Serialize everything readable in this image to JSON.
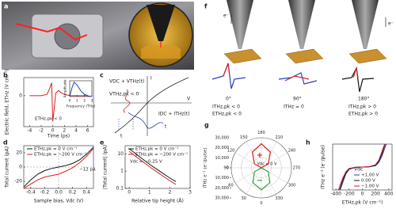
{
  "panels": {
    "a": {
      "label": "a"
    },
    "c": {
      "label": "c",
      "bias": "VDC + VTHz(t)",
      "peak": "VTHz,pk < 0",
      "i_axis": "I",
      "v_axis": "V",
      "current": "IDC + ITHz(t)",
      "t1": "t",
      "t2": "t"
    },
    "f": {
      "label": "f",
      "electron_1": "e⁻",
      "electron_2": "e⁻",
      "angle_1": "0°",
      "angle_2": "90°",
      "angle_3": "180°",
      "note_1a": "ITHz,pk < 0",
      "note_1b": "ETHz,pk < 0",
      "note_2": "ITHz = 0",
      "note_3a": "ITHz,pk > 0",
      "note_3b": "ETHz,pk > 0"
    }
  },
  "chart_data": [
    {
      "type": "line",
      "panel_label": "b",
      "xlabel": "Time (ps)",
      "ylabel": "Electric field, ETHz (V cm⁻¹)",
      "x": [
        -4,
        -3,
        -2,
        -1,
        -0.5,
        -0.2,
        0,
        0.2,
        0.5,
        1,
        1.5,
        2,
        3,
        4,
        6
      ],
      "xlim": [
        -5,
        7
      ],
      "xticks": [
        -4,
        -2,
        0,
        2,
        4,
        6
      ],
      "ylim": [
        -1.2,
        0.7
      ],
      "yticks": [
        0
      ],
      "series": [
        {
          "color": "#d62020",
          "values": [
            0,
            0,
            0,
            0.05,
            0.3,
            0.5,
            -1.0,
            -0.6,
            0.1,
            0.2,
            0.1,
            0.05,
            0,
            0,
            0
          ]
        }
      ],
      "annotations": [
        "ETHz,pk < 0"
      ]
    },
    {
      "type": "line",
      "xlabel": "Frequency (THz)",
      "ylabel": "Amplitude",
      "x": [
        0,
        0.3,
        0.6,
        1,
        1.5,
        2,
        2.5,
        3
      ],
      "xlim": [
        0,
        3
      ],
      "xticks": [
        0,
        1,
        2,
        3
      ],
      "ylim": [
        0,
        1.1
      ],
      "yticks": [],
      "series": [
        {
          "color": "#2a3fbf",
          "values": [
            0,
            0.6,
            1,
            0.8,
            0.4,
            0.15,
            0.05,
            0
          ]
        }
      ]
    },
    {
      "type": "line",
      "panel_label": "d",
      "xlabel": "Sample bias, Vdc (V)",
      "ylabel": "Total current (pA)",
      "x": [
        -0.5,
        -0.4,
        -0.3,
        -0.2,
        -0.1,
        0,
        0.1,
        0.2,
        0.3,
        0.4,
        0.5
      ],
      "xlim": [
        -0.5,
        0.5
      ],
      "xticks": [
        -0.4,
        -0.2,
        {
          "value": 0,
          "label": "0.0"
        },
        0.2,
        0.4
      ],
      "ylim": [
        -30,
        30
      ],
      "yticks": [
        -20,
        0,
        20
      ],
      "zero_lines": true,
      "series": [
        {
          "name": "ETHz,pk = 0 V cm⁻¹",
          "color": "#111111",
          "values": [
            -28,
            -18,
            -10,
            -5,
            -2,
            0,
            2,
            5,
            10,
            18,
            28
          ]
        },
        {
          "name": "ETHz,pk = −200 V cm⁻¹",
          "color": "#d62020",
          "values": [
            -30,
            -24,
            -18,
            -14,
            -12,
            -10,
            -6,
            -1,
            6,
            15,
            26
          ]
        }
      ],
      "annotations": [
        "−12 pA"
      ]
    },
    {
      "type": "line",
      "panel_label": "e",
      "xlabel": "Relative tip height (Å)",
      "ylabel": "|Total current| (pA)",
      "x": [
        0,
        0.5,
        1,
        1.5,
        2,
        2.3
      ],
      "xlim": [
        -0.2,
        3
      ],
      "xticks": [
        0,
        1,
        2,
        3
      ],
      "ylim": [
        0.1,
        30
      ],
      "ylog": true,
      "yticks": [
        0.1,
        1,
        10
      ],
      "series": [
        {
          "name": "ETHz,pk = 0 V cm⁻¹",
          "color": "#111111",
          "values": [
            20,
            7,
            2.5,
            1,
            0.4,
            0.25
          ]
        },
        {
          "name": "ETHz,pk = −200 V cm⁻¹",
          "color": "#d62020",
          "values": [
            14,
            5,
            1.8,
            0.7,
            0.28,
            0.17
          ]
        }
      ],
      "annotations": [
        "Vdc = −0.25 V"
      ]
    },
    {
      "type": "polar",
      "panel_label": "g",
      "ylabel": "ITHz e⁻¹ (e⁻/pulse)",
      "rlim": [
        0,
        30000
      ],
      "yticks": [
        {
          "value": 30000,
          "label": "30,000"
        },
        {
          "value": 20000,
          "label": "20,000"
        },
        {
          "value": 10000,
          "label": "10,000"
        },
        0,
        {
          "value": -10000,
          "label": "10,000"
        },
        {
          "value": -20000,
          "label": "20,000"
        },
        {
          "value": -30000,
          "label": "30,000"
        }
      ],
      "angle_ticks": [
        0,
        30,
        60,
        90,
        120,
        150,
        180,
        210,
        240,
        270,
        300,
        330
      ],
      "series": [
        {
          "color": "#d62020",
          "angles": [
            90,
            120,
            150,
            180,
            210,
            240,
            270
          ],
          "values": [
            0,
            8000,
            18000,
            24000,
            18000,
            8000,
            0
          ]
        },
        {
          "color": "#3a9a3a",
          "angles": [
            -90,
            -60,
            -30,
            0,
            30,
            60,
            90
          ],
          "values": [
            0,
            -8000,
            -17000,
            -22000,
            -17000,
            -8000,
            0
          ]
        }
      ],
      "annotations": [
        "Vdc = 0 V",
        "+",
        "−"
      ]
    },
    {
      "type": "line",
      "panel_label": "h",
      "xlabel": "ETHz,pk (V cm⁻¹)",
      "ylabel": "ITHz e⁻¹ (e⁻/pulse)",
      "x": [
        -400,
        -300,
        -250,
        -200,
        -100,
        0,
        100,
        200,
        250,
        300,
        400
      ],
      "xlim": [
        -450,
        450
      ],
      "xticks": [
        -400,
        -200,
        0,
        200,
        400
      ],
      "ylim": [
        -20000,
        20000
      ],
      "yticks": [],
      "legend_title": "Vdc",
      "series": [
        {
          "name": "+1.00 V",
          "color": "#2a3fbf",
          "values": [
            -30000,
            -14000,
            -6000,
            -2000,
            -300,
            0,
            150,
            1200,
            4200,
            10000,
            26000
          ]
        },
        {
          "name": "0.00 V",
          "color": "#111111",
          "values": [
            -30000,
            -12000,
            -5000,
            -1500,
            -200,
            0,
            200,
            1500,
            5000,
            12000,
            30000
          ]
        },
        {
          "name": "−1.00 V",
          "color": "#d62020",
          "values": [
            -26000,
            -10000,
            -4200,
            -1200,
            -150,
            0,
            300,
            2000,
            6000,
            14000,
            30000
          ]
        }
      ]
    }
  ]
}
